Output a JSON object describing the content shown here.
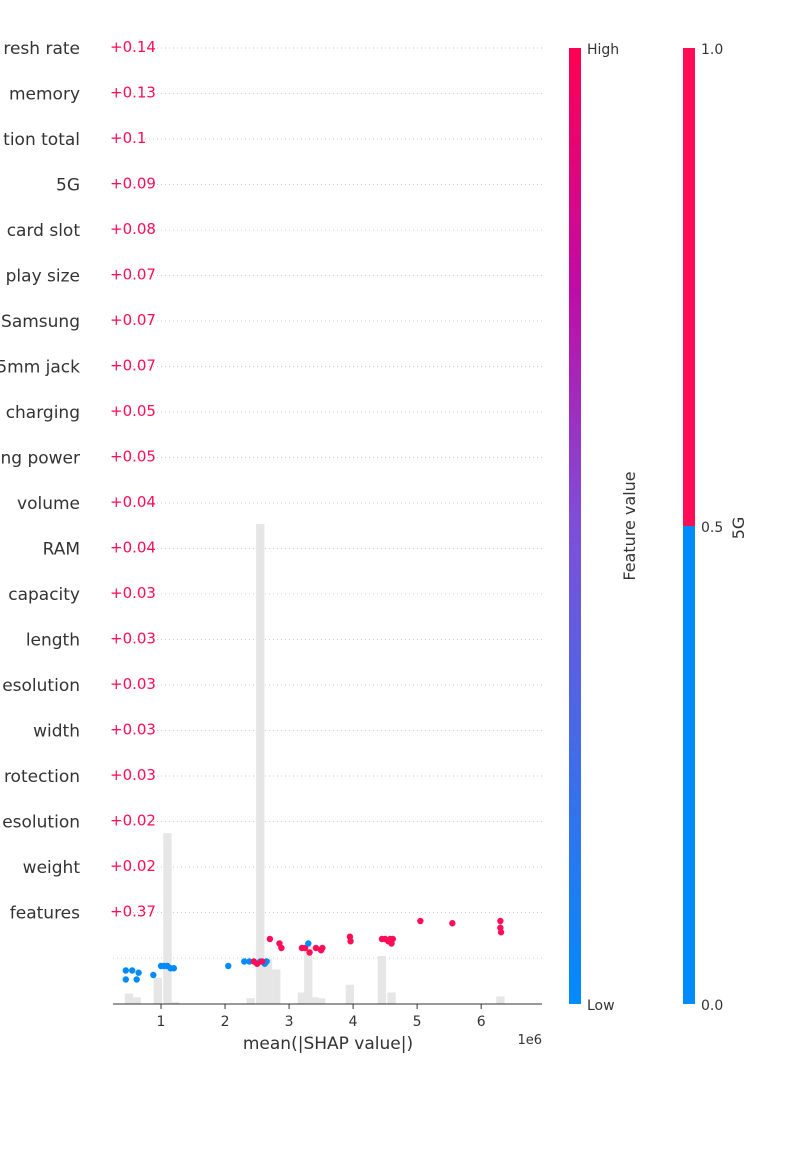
{
  "chart_data": {
    "type": "scatter",
    "features": [
      {
        "name": "...resh rate",
        "value": "+0.14"
      },
      {
        "name": "...memory",
        "value": "+0.13"
      },
      {
        "name": "...tion total",
        "value": "+0.1"
      },
      {
        "name": "5G",
        "value": "+0.09"
      },
      {
        "name": "...card slot",
        "value": "+0.08"
      },
      {
        "name": "...play size",
        "value": "+0.07"
      },
      {
        "name": "...Samsung",
        "value": "+0.07"
      },
      {
        "name": "...5mm jack",
        "value": "+0.07"
      },
      {
        "name": "...charging",
        "value": "+0.05"
      },
      {
        "name": "...ng power",
        "value": "+0.05"
      },
      {
        "name": "volume",
        "value": "+0.04"
      },
      {
        "name": "RAM",
        "value": "+0.04"
      },
      {
        "name": "...capacity",
        "value": "+0.03"
      },
      {
        "name": "length",
        "value": "+0.03"
      },
      {
        "name": "...esolution",
        "value": "+0.03"
      },
      {
        "name": "width",
        "value": "+0.03"
      },
      {
        "name": "...rotection",
        "value": "+0.03"
      },
      {
        "name": "...esolution",
        "value": "+0.02"
      },
      {
        "name": "weight",
        "value": "+0.02"
      },
      {
        "name": "...features",
        "value": "+0.37"
      }
    ],
    "xlabel": "mean(|SHAP value|)",
    "x_offset_label": "1e6",
    "x_ticks": [
      1,
      2,
      3,
      4,
      5,
      6
    ],
    "xlim": [
      0.25,
      6.95
    ],
    "histogram": {
      "x": [
        0.5,
        0.62,
        0.95,
        1.1,
        1.22,
        2.4,
        2.55,
        2.67,
        2.8,
        3.2,
        3.3,
        3.4,
        3.5,
        3.95,
        4.45,
        4.6,
        6.3
      ],
      "heights": [
        0.022,
        0.014,
        0.054,
        0.356,
        0.004,
        0.012,
        1.0,
        0.094,
        0.072,
        0.024,
        0.12,
        0.014,
        0.012,
        0.04,
        0.1,
        0.024,
        0.016
      ]
    },
    "points": [
      {
        "x": 0.45,
        "y": 0.97,
        "v": 0
      },
      {
        "x": 0.45,
        "y": 0.95,
        "v": 0
      },
      {
        "x": 0.55,
        "y": 0.97,
        "v": 0
      },
      {
        "x": 0.62,
        "y": 0.95,
        "v": 0
      },
      {
        "x": 0.65,
        "y": 0.965,
        "v": 0
      },
      {
        "x": 0.88,
        "y": 0.96,
        "v": 0
      },
      {
        "x": 1.0,
        "y": 0.98,
        "v": 0
      },
      {
        "x": 1.05,
        "y": 0.98,
        "v": 0
      },
      {
        "x": 1.1,
        "y": 0.98,
        "v": 0
      },
      {
        "x": 1.15,
        "y": 0.975,
        "v": 0
      },
      {
        "x": 1.2,
        "y": 0.975,
        "v": 0
      },
      {
        "x": 2.05,
        "y": 0.98,
        "v": 0
      },
      {
        "x": 2.3,
        "y": 0.99,
        "v": 0
      },
      {
        "x": 2.38,
        "y": 0.99,
        "v": 0
      },
      {
        "x": 2.55,
        "y": 0.99,
        "v": 0
      },
      {
        "x": 2.62,
        "y": 0.985,
        "v": 0
      },
      {
        "x": 2.65,
        "y": 0.99,
        "v": 0
      },
      {
        "x": 2.45,
        "y": 0.99,
        "v": 1
      },
      {
        "x": 2.5,
        "y": 0.985,
        "v": 1
      },
      {
        "x": 2.58,
        "y": 0.99,
        "v": 1
      },
      {
        "x": 2.7,
        "y": 1.04,
        "v": 1
      },
      {
        "x": 2.85,
        "y": 1.03,
        "v": 1
      },
      {
        "x": 2.88,
        "y": 1.02,
        "v": 1
      },
      {
        "x": 3.2,
        "y": 1.02,
        "v": 1
      },
      {
        "x": 3.25,
        "y": 1.02,
        "v": 1
      },
      {
        "x": 3.3,
        "y": 1.03,
        "v": 0
      },
      {
        "x": 3.32,
        "y": 1.01,
        "v": 1
      },
      {
        "x": 3.42,
        "y": 1.02,
        "v": 1
      },
      {
        "x": 3.5,
        "y": 1.015,
        "v": 1
      },
      {
        "x": 3.52,
        "y": 1.02,
        "v": 1
      },
      {
        "x": 3.95,
        "y": 1.045,
        "v": 1
      },
      {
        "x": 3.96,
        "y": 1.035,
        "v": 1
      },
      {
        "x": 4.45,
        "y": 1.04,
        "v": 1
      },
      {
        "x": 4.5,
        "y": 1.04,
        "v": 1
      },
      {
        "x": 4.55,
        "y": 1.035,
        "v": 1
      },
      {
        "x": 4.58,
        "y": 1.04,
        "v": 1
      },
      {
        "x": 4.6,
        "y": 1.03,
        "v": 1
      },
      {
        "x": 4.62,
        "y": 1.04,
        "v": 1
      },
      {
        "x": 5.05,
        "y": 1.08,
        "v": 1
      },
      {
        "x": 5.55,
        "y": 1.075,
        "v": 1
      },
      {
        "x": 6.3,
        "y": 1.08,
        "v": 1
      },
      {
        "x": 6.3,
        "y": 1.065,
        "v": 1
      },
      {
        "x": 6.31,
        "y": 1.055,
        "v": 1
      }
    ],
    "colorbar_feature": {
      "label": "Feature value",
      "high": "High",
      "low": "Low"
    },
    "colorbar_5g": {
      "label": "5G",
      "ticks": [
        "1.0",
        "0.5",
        "0.0"
      ]
    },
    "colors": {
      "positive": "#ff0d57",
      "negative": "#1e88e5",
      "grid": "#cccccc",
      "hist": "#e6e6e6"
    }
  }
}
